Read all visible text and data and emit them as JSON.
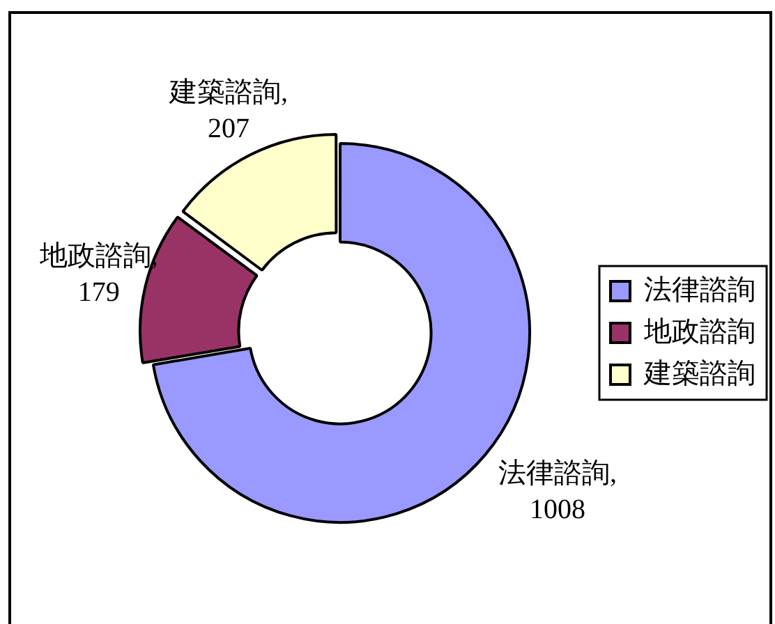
{
  "chart_data": {
    "type": "donut",
    "categories": [
      "法律諮詢",
      "地政諮詢",
      "建築諮詢"
    ],
    "values": [
      1008,
      179,
      207
    ],
    "colors": [
      "#9999ff",
      "#993366",
      "#ffffcc"
    ],
    "legend": "right",
    "value_labels": [
      "法律諮詢,\n1008",
      "地政諮詢,\n179",
      "建築諮詢,\n207"
    ]
  }
}
